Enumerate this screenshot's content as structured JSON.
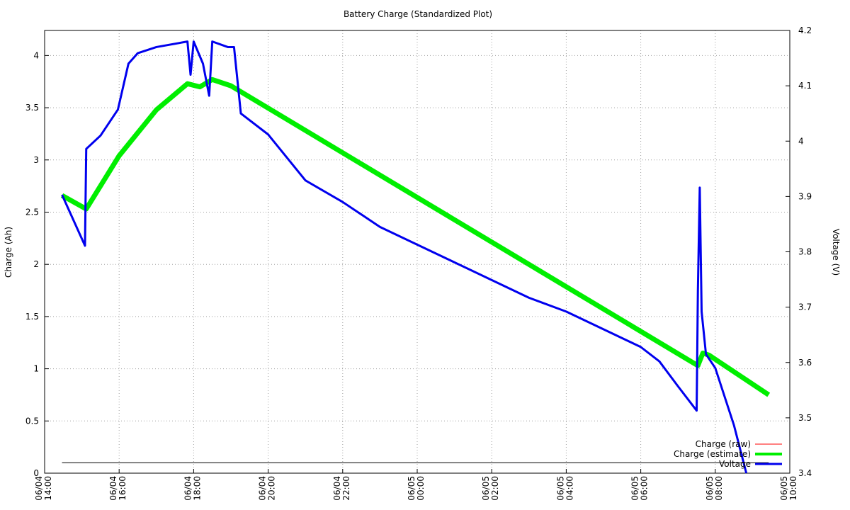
{
  "chart_data": {
    "type": "line",
    "title": "Battery Charge (Standardized Plot)",
    "ylabel": "Charge (Ah)",
    "y2label": "Voltage (V)",
    "xlim": [
      "06/04 14:00",
      "06/05 10:00"
    ],
    "xticks": [
      "06/04 14:00",
      "06/04 16:00",
      "06/04 18:00",
      "06/04 20:00",
      "06/04 22:00",
      "06/05 00:00",
      "06/05 02:00",
      "06/05 04:00",
      "06/05 06:00",
      "06/05 08:00",
      "06/05 10:00"
    ],
    "ylim": [
      0,
      4.24
    ],
    "yticks": [
      0,
      0.5,
      1,
      1.5,
      2,
      2.5,
      3,
      3.5,
      4
    ],
    "y2lim": [
      3.4,
      4.2
    ],
    "y2ticks": [
      3.4,
      3.5,
      3.6,
      3.7,
      3.8,
      3.9,
      4,
      4.1,
      4.2
    ],
    "grid": true,
    "legend": "lower right",
    "series": [
      {
        "name": "Charge (raw)",
        "color": "#ff0000",
        "x": [
          "06/04 14:28",
          "06/04 15:07",
          "06/04 16:00",
          "06/04 17:00",
          "06/04 17:50",
          "06/04 18:10",
          "06/04 18:30",
          "06/04 19:00",
          "06/05 07:32",
          "06/05 07:40",
          "06/05 07:50",
          "06/05 09:26"
        ],
        "values": [
          2.66,
          2.53,
          3.04,
          3.48,
          3.73,
          3.7,
          3.77,
          3.71,
          1.03,
          1.15,
          1.13,
          0.75
        ]
      },
      {
        "name": "Charge (estimate)",
        "color": "#00ee00",
        "x": [
          "06/04 14:28",
          "06/04 15:07",
          "06/04 16:00",
          "06/04 17:00",
          "06/04 17:50",
          "06/04 18:10",
          "06/04 18:30",
          "06/04 19:00",
          "06/05 07:32",
          "06/05 07:40",
          "06/05 07:50",
          "06/05 09:26"
        ],
        "values": [
          2.66,
          2.53,
          3.04,
          3.48,
          3.73,
          3.7,
          3.77,
          3.71,
          1.03,
          1.15,
          1.13,
          0.75
        ]
      },
      {
        "name": "Voltage",
        "color": "#0000ee",
        "axis": "y2",
        "x": [
          "06/04 14:28",
          "06/04 15:05",
          "06/04 15:07",
          "06/04 15:30",
          "06/04 15:58",
          "06/04 16:15",
          "06/04 16:30",
          "06/04 17:00",
          "06/04 17:50",
          "06/04 17:55",
          "06/04 18:00",
          "06/04 18:15",
          "06/04 18:25",
          "06/04 18:30",
          "06/04 18:55",
          "06/04 19:05",
          "06/04 19:16",
          "06/04 20:00",
          "06/04 21:00",
          "06/04 22:00",
          "06/04 23:00",
          "06/05 00:00",
          "06/05 01:00",
          "06/05 02:00",
          "06/05 03:00",
          "06/05 04:00",
          "06/05 05:00",
          "06/05 06:00",
          "06/05 06:30",
          "06/05 07:00",
          "06/05 07:30",
          "06/05 07:32",
          "06/05 07:35",
          "06/05 07:38",
          "06/05 07:45",
          "06/05 08:00",
          "06/05 08:30",
          "06/05 08:50"
        ],
        "values": [
          3.903,
          3.811,
          3.986,
          4.01,
          4.057,
          4.14,
          4.159,
          4.17,
          4.18,
          4.12,
          4.18,
          4.14,
          4.082,
          4.18,
          4.17,
          4.17,
          4.05,
          4.012,
          3.929,
          3.89,
          3.845,
          3.813,
          3.781,
          3.749,
          3.717,
          3.692,
          3.66,
          3.628,
          3.602,
          3.557,
          3.513,
          3.73,
          3.916,
          3.692,
          3.615,
          3.59,
          3.487,
          3.4
        ]
      },
      {
        "color": "#000000",
        "x": [
          "06/04 14:28",
          "06/05 09:26"
        ],
        "values": [
          0.1,
          0.1
        ]
      }
    ]
  }
}
